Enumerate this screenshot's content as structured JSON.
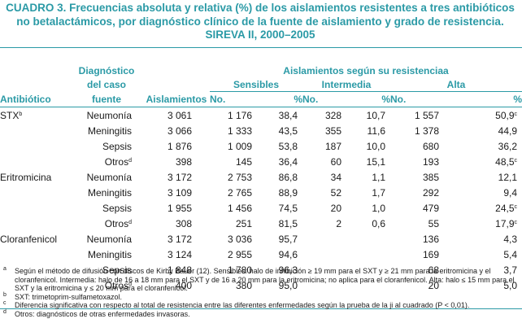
{
  "title": {
    "label": "CUADRO 3.",
    "line1": "Frecuencias absoluta y relativa (%) de los aislamientos resistentes a tres antibióticos",
    "line2": "no betalactámicos, por diagnóstico clínico de la fuente de aislamiento y grado de resistencia.",
    "line3": "SIREVA II, 2000–2005"
  },
  "headers": {
    "antibiotico": "Antibiótico",
    "diag1": "Diagnóstico",
    "diag2": "del caso",
    "diag3": "fuente",
    "aislamientos": "Aislamientos",
    "group": "Aislamientos según su resistenciaa",
    "sensibles": "Sensibles",
    "intermedia": "Intermedia",
    "alta": "Alta",
    "no": "No.",
    "pct": "%"
  },
  "rows": [
    {
      "ab": "STX",
      "ab_sup": "b",
      "dx": "Neumonía",
      "dx_sup": "",
      "n": "3 061",
      "s_no": "1 176",
      "s_pct": "38,4",
      "i_no": "328",
      "i_pct": "10,7",
      "a_no": "1 557",
      "a_pct": "50,9",
      "a_sup": "c"
    },
    {
      "ab": "",
      "ab_sup": "",
      "dx": "Meningitis",
      "dx_sup": "",
      "n": "3 066",
      "s_no": "1 333",
      "s_pct": "43,5",
      "i_no": "355",
      "i_pct": "11,6",
      "a_no": "1 378",
      "a_pct": "44,9",
      "a_sup": ""
    },
    {
      "ab": "",
      "ab_sup": "",
      "dx": "Sepsis",
      "dx_sup": "",
      "n": "1 876",
      "s_no": "1 009",
      "s_pct": "53,8",
      "i_no": "187",
      "i_pct": "10,0",
      "a_no": "680",
      "a_pct": "36,2",
      "a_sup": ""
    },
    {
      "ab": "",
      "ab_sup": "",
      "dx": "Otros",
      "dx_sup": "d",
      "n": "398",
      "s_no": "145",
      "s_pct": "36,4",
      "i_no": "60",
      "i_pct": "15,1",
      "a_no": "193",
      "a_pct": "48,5",
      "a_sup": "c"
    },
    {
      "ab": "Eritromicina",
      "ab_sup": "",
      "dx": "Neumonía",
      "dx_sup": "",
      "n": "3 172",
      "s_no": "2 753",
      "s_pct": "86,8",
      "i_no": "34",
      "i_pct": "1,1",
      "a_no": "385",
      "a_pct": "12,1",
      "a_sup": ""
    },
    {
      "ab": "",
      "ab_sup": "",
      "dx": "Meningitis",
      "dx_sup": "",
      "n": "3 109",
      "s_no": "2 765",
      "s_pct": "88,9",
      "i_no": "52",
      "i_pct": "1,7",
      "a_no": "292",
      "a_pct": "9,4",
      "a_sup": ""
    },
    {
      "ab": "",
      "ab_sup": "",
      "dx": "Sepsis",
      "dx_sup": "",
      "n": "1 955",
      "s_no": "1 456",
      "s_pct": "74,5",
      "i_no": "20",
      "i_pct": "1,0",
      "a_no": "479",
      "a_pct": "24,5",
      "a_sup": "c"
    },
    {
      "ab": "",
      "ab_sup": "",
      "dx": "Otros",
      "dx_sup": "d",
      "n": "308",
      "s_no": "251",
      "s_pct": "81,5",
      "i_no": "2",
      "i_pct": "0,6",
      "a_no": "55",
      "a_pct": "17,9",
      "a_sup": "c"
    },
    {
      "ab": "Cloranfenicol",
      "ab_sup": "",
      "dx": "Neumonía",
      "dx_sup": "",
      "n": "3 172",
      "s_no": "3 036",
      "s_pct": "95,7",
      "i_no": "",
      "i_pct": "",
      "a_no": "136",
      "a_pct": "4,3",
      "a_sup": ""
    },
    {
      "ab": "",
      "ab_sup": "",
      "dx": "Meningitis",
      "dx_sup": "",
      "n": "3 124",
      "s_no": "2 955",
      "s_pct": "94,6",
      "i_no": "",
      "i_pct": "",
      "a_no": "169",
      "a_pct": "5,4",
      "a_sup": ""
    },
    {
      "ab": "",
      "ab_sup": "",
      "dx": "Sepsis",
      "dx_sup": "",
      "n": "1 848",
      "s_no": "1 780",
      "s_pct": "96,3",
      "i_no": "",
      "i_pct": "",
      "a_no": "68",
      "a_pct": "3,7",
      "a_sup": ""
    },
    {
      "ab": "",
      "ab_sup": "",
      "dx": "Otros",
      "dx_sup": "d",
      "n": "400",
      "s_no": "380",
      "s_pct": "95,0",
      "i_no": "",
      "i_pct": "",
      "a_no": "20",
      "a_pct": "5,0",
      "a_sup": ""
    }
  ],
  "notes": [
    {
      "mark": "a",
      "text": "Según el método de difusión con discos de Kirby Bauer (12). Sensibles: halo de inhibición ≥ 19 mm para el SXT y ≥ 21 mm para la eritromicina y el cloranfenicol. Intermedia: halo de 16 a 18 mm para el SXT y de 16 a 20 mm para la eritromicina; no aplica para el cloranfenicol. Alta: halo ≤ 15 mm para el SXT y la eritromicina y ≤ 20 mm para el cloranfenicol."
    },
    {
      "mark": "b",
      "text": "SXT: trimetoprim-sulfametoxazol."
    },
    {
      "mark": "c",
      "text": "Diferencia significativa con respecto al total de resistencia entre las diferentes enfermedades según la prueba de la ji al cuadrado (P < 0,01)."
    },
    {
      "mark": "d",
      "text": "Otros: diagnósticos de otras enfermedades invasoras."
    }
  ]
}
